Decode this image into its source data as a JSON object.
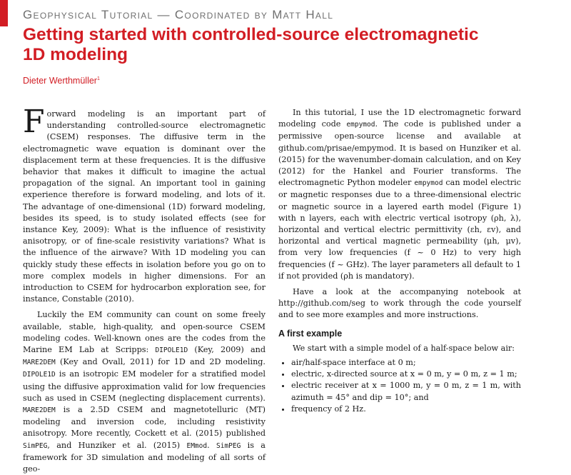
{
  "header": {
    "series": "Geophysical Tutorial — Coordinated by Matt Hall",
    "title": "Getting started with controlled-source electromagnetic 1D modeling",
    "author": "Dieter Werthmüller",
    "author_mark": "1"
  },
  "left_column": {
    "p1_dropcap": "F",
    "p1": "orward modeling is an important part of understanding controlled-source electromagnetic (CSEM) responses. The diffusive term in the electromagnetic wave equation is dominant over the displacement term at these frequencies. It is the diffusive behavior that makes it difficult to imagine the actual propagation of the signal. An important tool in gaining experience therefore is forward modeling, and lots of it. The advantage of one-dimensional (1D) forward modeling, besides its speed, is to study isolated effects (see for instance Key, 2009): What is the influence of resistivity anisotropy, or of fine-scale resistivity variations? What is the influence of the airwave? With 1D modeling you can quickly study these effects in isolation before you go on to more complex models in higher dimensions. For an introduction to CSEM for hydrocarbon exploration see, for instance, Constable (2010).",
    "p2_a": "Luckily the EM community can count on some freely available, stable, high-quality, and open-source CSEM modeling codes. Well-known ones are the codes from the Marine EM Lab at Scripps: ",
    "code_dipole": "DIPOLE1D",
    "p2_b": " (Key, 2009) and ",
    "code_mare2dem": "MARE2DEM",
    "p2_c": " (Key and Ovall, 2011) for 1D and 2D modeling. ",
    "p2_d": " is an isotropic EM modeler for a stratified model using the diffusive approximation valid for low frequencies such as used in CSEM (neglecting displacement currents). ",
    "p2_e": " is a 2.5D CSEM and magnetotelluric (MT) modeling and inversion code, including resistivity anisotropy. More recently, Cockett et al. (2015) published ",
    "code_simpeg": "SimPEG",
    "p2_f": ", and Hunziker et al. (2015) ",
    "code_emmod": "EMmod",
    "p2_g": ". ",
    "p2_h": " is a framework for 3D simulation and modeling of all sorts of geo-"
  },
  "right_column": {
    "p1_a": "In this tutorial, I use the 1D electromagnetic forward modeling code ",
    "code_empymod": "empymod",
    "p1_b": ". The code is published under a permissive open-source license and available at github.com/prisae/empymod. It is based on Hunziker et al. (2015) for the wavenumber-domain calculation, and on Key (2012) for the Hankel and Fourier transforms. The electromagnetic Python modeler ",
    "p1_c": " can model electric or magnetic responses due to a three-dimensional electric or magnetic source in a layered earth model (Figure 1) with n layers, each with electric vertical isotropy (ρh, λ), horizontal and vertical electric permittivity (εh, εv), and horizontal and vertical magnetic permeability (μh, μv), from very low frequencies (f ~ 0 Hz) to very high frequencies (f ~ GHz). The layer parameters all default to 1 if not provided (ρh is mandatory).",
    "p2": "Have a look at the accompanying notebook at http://github.com/seg to work through the code yourself and to see more examples and more instructions.",
    "heading": "A first example",
    "p3": "We start with a simple model of a half-space below air:",
    "bullets": [
      "air/half-space interface at 0 m;",
      "electric, x-directed source at x = 0 m, y = 0 m, z = 1 m;",
      "electric receiver at x = 1000 m, y = 0 m, z = 1 m, with azimuth = 45° and dip = 10°; and",
      "frequency of 2 Hz."
    ]
  }
}
